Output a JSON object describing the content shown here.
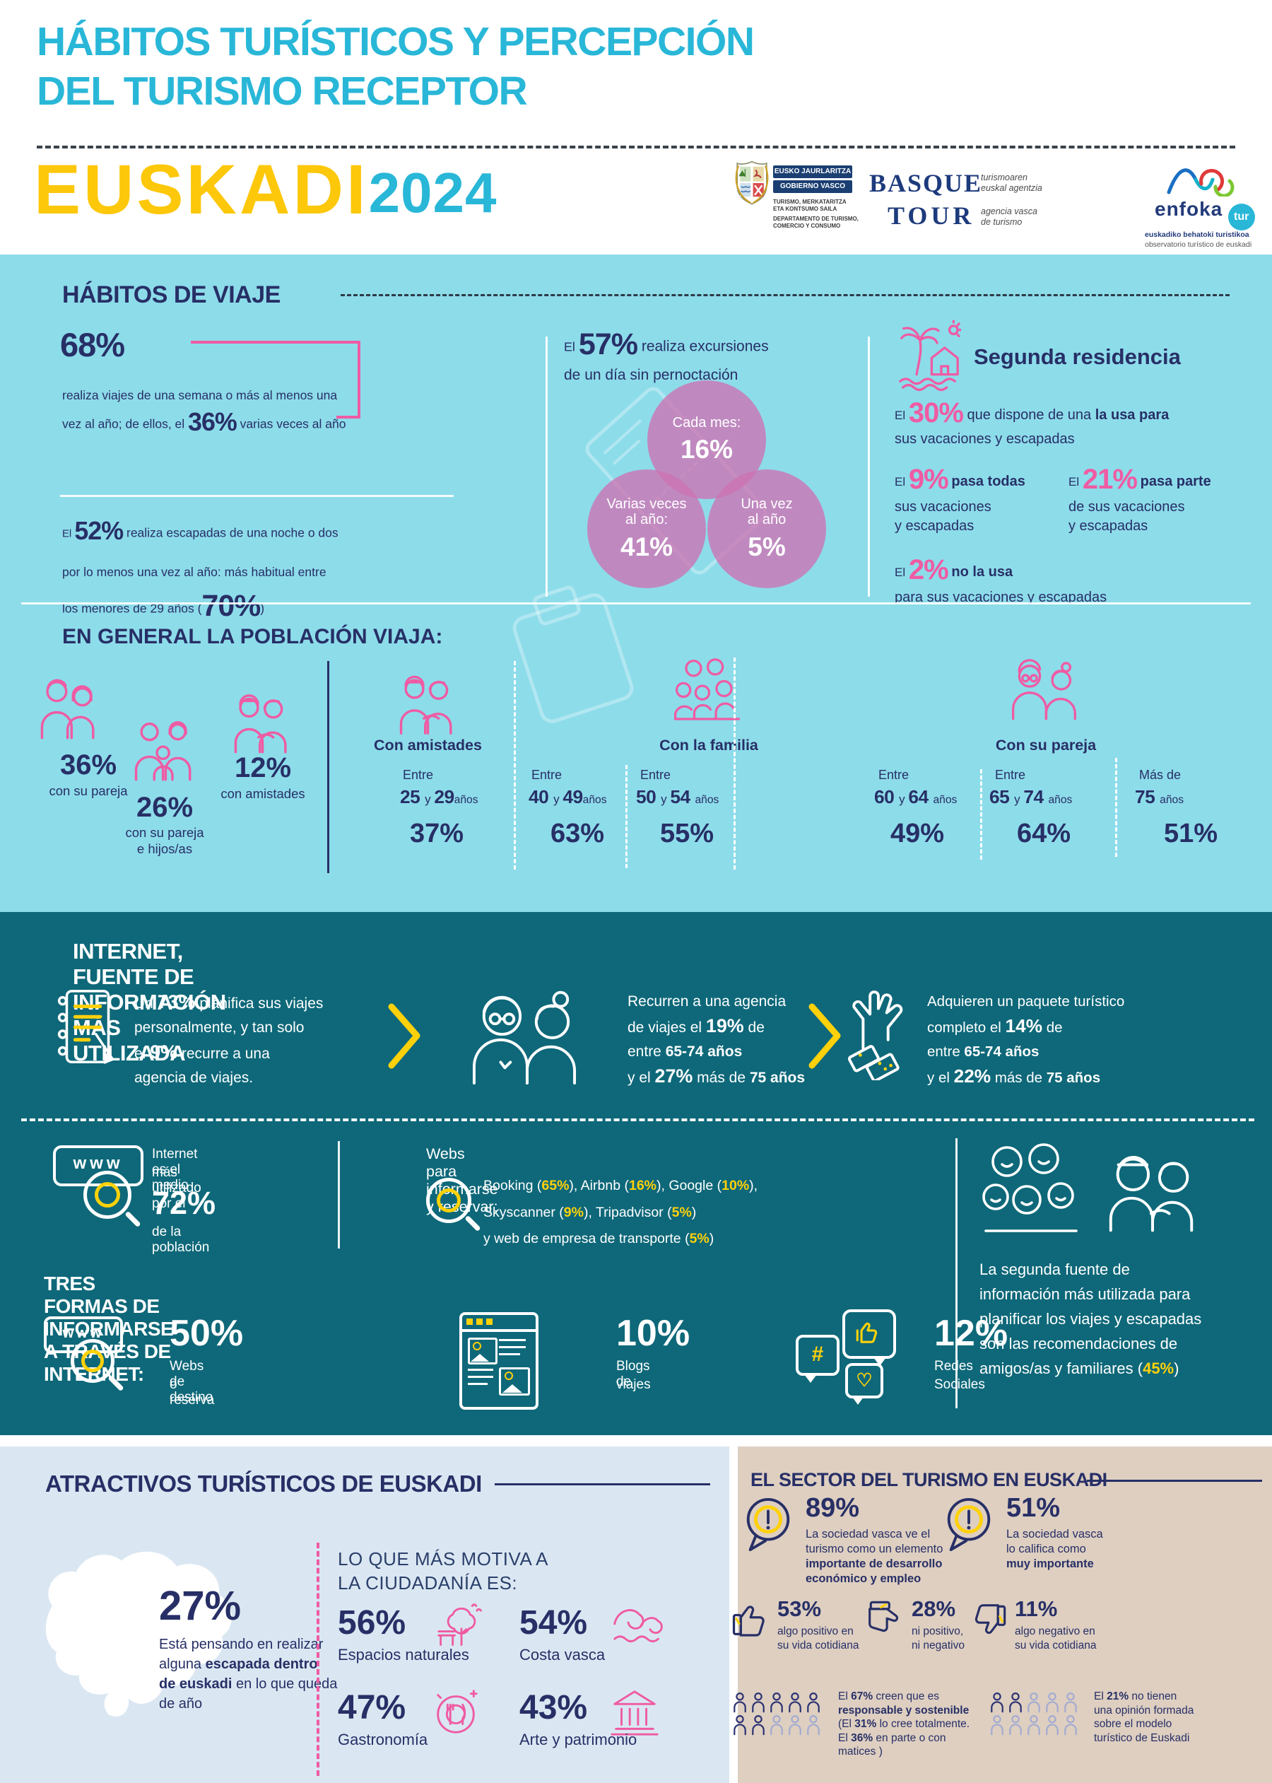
{
  "colors": {
    "cyan": "#29b7d8",
    "yellow": "#fdc70a",
    "navy": "#272f66",
    "pink": "#ef5ba3",
    "teal_bg": "#0e6879",
    "light_cyan_bg": "#8ddcea",
    "light_blue_bg": "#dae7f2",
    "tan_bg": "#decfc1"
  },
  "icons": {
    "www": "www",
    "www2": "www",
    "hash": "#",
    "heart": "♡"
  },
  "header": {
    "title1": "HÁBITOS TURÍSTICOS Y PERCEPCIÓN",
    "title2": "DEL TURISMO RECEPTOR",
    "brand": "EUSKADI",
    "year": "2024",
    "gov": {
      "bar1": "EUSKO JAURLARITZA",
      "bar2": "GOBIERNO VASCO",
      "sub1": "TURISMO, MERKATARITZA",
      "sub2": "ETA KONTSUMO SAILA",
      "sub3": "DEPARTAMENTO DE TURISMO,",
      "sub4": "COMERCIO Y CONSUMO"
    },
    "basque": {
      "l1": "BASQUE",
      "l2": "TOUR",
      "s1": "turismoaren",
      "s2": "euskal agentzia",
      "s3": "agencia vasca",
      "s4": "de turismo"
    },
    "enfoka": {
      "name": "enfoka",
      "tur": "tur",
      "s1": "euskadiko behatoki turistikoa",
      "s2": "observatorio turístico de euskadi"
    }
  },
  "habitos": {
    "title": "HÁBITOS DE VIAJE",
    "pct68": "68%",
    "s1l1": "realiza viajes de una semana o más al menos una",
    "s1l2": [
      {
        "t": "vez al año; de ellos, el "
      },
      {
        "t": "36%",
        "s": "hl"
      },
      {
        "t": " varias veces al año"
      }
    ],
    "s2l1": [
      {
        "t": "El ",
        "s": "sm"
      },
      {
        "t": "52%",
        "s": "hl"
      },
      {
        "t": " realiza escapadas de una noche o dos"
      }
    ],
    "s2l2": "por lo menos una vez al año: más habitual entre",
    "s2l3": [
      {
        "t": "los menores de 29 años ("
      },
      {
        "t": "70%",
        "s": "hl2"
      },
      {
        "t": ")"
      }
    ],
    "excl1": [
      {
        "t": "El ",
        "s": "sm"
      },
      {
        "t": "57%",
        "s": "hl"
      },
      {
        "t": " realiza excursiones"
      }
    ],
    "excl2": "de un día sin pernoctación",
    "circles": [
      {
        "l1": "Cada mes:",
        "l2": "",
        "pct": "16%"
      },
      {
        "l1": "Varias veces",
        "l2": "al año:",
        "pct": "41%"
      },
      {
        "l1": "Una vez",
        "l2": "al año",
        "pct": "5%"
      }
    ],
    "sr": {
      "title": "Segunda residencia",
      "a1": [
        {
          "t": "El ",
          "s": "sm"
        },
        {
          "t": "30%",
          "s": "pink"
        },
        {
          "t": " que dispone de una "
        },
        {
          "t": "la usa para",
          "s": "b"
        }
      ],
      "a2": "sus vacaciones y escapadas",
      "b1": [
        {
          "t": "El ",
          "s": "sm"
        },
        {
          "t": "9%",
          "s": "pink"
        },
        {
          "t": " ",
          "s": "sm"
        },
        {
          "t": "pasa todas",
          "s": "b"
        }
      ],
      "b2": "sus vacaciones",
      "b3": "y escapadas",
      "c1": [
        {
          "t": "El ",
          "s": "sm"
        },
        {
          "t": "21%",
          "s": "pink"
        },
        {
          "t": " ",
          "s": "sm"
        },
        {
          "t": "pasa parte",
          "s": "b"
        }
      ],
      "c2": "de sus vacaciones",
      "c3": "y escapadas",
      "d1": [
        {
          "t": "El ",
          "s": "sm"
        },
        {
          "t": "2%",
          "s": "pink"
        },
        {
          "t": " ",
          "s": "sm"
        },
        {
          "t": "no la usa",
          "s": "b"
        }
      ],
      "d2": "para sus vacaciones y escapadas"
    }
  },
  "poblacion": {
    "title": "EN GENERAL LA POBLACIÓN VIAJA:",
    "stats": [
      {
        "pct": "36%",
        "l1": "con su pareja",
        "l2": ""
      },
      {
        "pct": "26%",
        "l1": "con su pareja",
        "l2": "e hijos/as"
      },
      {
        "pct": "12%",
        "l1": "con amistades",
        "l2": ""
      }
    ],
    "g1": "Con amistades",
    "g2": "Con la familia",
    "g3": "Con su pareja",
    "cols": [
      {
        "pre": "Entre",
        "age": [
          {
            "t": "25 ",
            "s": "num"
          },
          {
            "t": "y ",
            "s": "y"
          },
          {
            "t": "29",
            "s": "num"
          },
          {
            "t": "años",
            "s": "anos"
          }
        ],
        "pct": "37%"
      },
      {
        "pre": "Entre",
        "age": [
          {
            "t": "40 ",
            "s": "num"
          },
          {
            "t": "y ",
            "s": "y"
          },
          {
            "t": "49",
            "s": "num"
          },
          {
            "t": "años",
            "s": "anos"
          }
        ],
        "pct": "63%"
      },
      {
        "pre": "Entre",
        "age": [
          {
            "t": "50 ",
            "s": "num"
          },
          {
            "t": "y ",
            "s": "y"
          },
          {
            "t": "54 ",
            "s": "num"
          },
          {
            "t": "años",
            "s": "anos"
          }
        ],
        "pct": "55%"
      },
      {
        "pre": "Entre",
        "age": [
          {
            "t": "60 ",
            "s": "num"
          },
          {
            "t": "y ",
            "s": "y"
          },
          {
            "t": "64 ",
            "s": "num"
          },
          {
            "t": "años",
            "s": "anos"
          }
        ],
        "pct": "49%"
      },
      {
        "pre": "Entre",
        "age": [
          {
            "t": "65 ",
            "s": "num"
          },
          {
            "t": "y ",
            "s": "y"
          },
          {
            "t": "74 ",
            "s": "num"
          },
          {
            "t": "años",
            "s": "anos"
          }
        ],
        "pct": "64%"
      },
      {
        "pre": "Más de",
        "age": [
          {
            "t": "75 ",
            "s": "num"
          },
          {
            "t": "años",
            "s": "anos"
          }
        ],
        "pct": "51%"
      }
    ]
  },
  "internet": {
    "title": "INTERNET, FUENTE DE INFORMACIÓN MÁS UTILIZADA",
    "t1": [
      [
        {
          "t": "Un "
        },
        {
          "t": "73%",
          "s": "bb"
        },
        {
          "t": " planifica sus viajes"
        }
      ],
      [
        {
          "t": "personalmente, y tan solo"
        }
      ],
      [
        {
          "t": "el "
        },
        {
          "t": "9%",
          "s": "bb"
        },
        {
          "t": " recurre a una"
        }
      ],
      [
        {
          "t": "agencia de viajes."
        }
      ]
    ],
    "t2": [
      [
        {
          "t": "Recurren a una agencia"
        }
      ],
      [
        {
          "t": "de viajes el "
        },
        {
          "t": "19%",
          "s": "bb"
        },
        {
          "t": " de"
        }
      ],
      [
        {
          "t": "entre "
        },
        {
          "t": "65-74 años",
          "s": "b"
        }
      ],
      [
        {
          "t": "y el "
        },
        {
          "t": "27%",
          "s": "bb"
        },
        {
          "t": " más de "
        },
        {
          "t": "75 años",
          "s": "b"
        }
      ]
    ],
    "t3": [
      [
        {
          "t": "Adquieren un paquete turístico"
        }
      ],
      [
        {
          "t": "completo el "
        },
        {
          "t": "14%",
          "s": "bb"
        },
        {
          "t": " de"
        }
      ],
      [
        {
          "t": "entre "
        },
        {
          "t": "65-74 años",
          "s": "b"
        }
      ],
      [
        {
          "t": "y el "
        },
        {
          "t": "22%",
          "s": "bb"
        },
        {
          "t": " más de "
        },
        {
          "t": "75 años",
          "s": "b"
        }
      ]
    ],
    "m1": "Internet es el medio",
    "m2": "más utilizado por el",
    "mpct": "72%",
    "m3": "de la población",
    "webs_title": "Webs para informarse y reservar:",
    "w1": [
      {
        "t": "Booking ("
      },
      {
        "t": "65%",
        "s": "yel"
      },
      {
        "t": "), Airbnb ("
      },
      {
        "t": "16%",
        "s": "yel"
      },
      {
        "t": "), Google ("
      },
      {
        "t": "10%",
        "s": "yel"
      },
      {
        "t": "),"
      }
    ],
    "w2": [
      {
        "t": "Skyscanner ("
      },
      {
        "t": "9%",
        "s": "yel"
      },
      {
        "t": "), Tripadvisor ("
      },
      {
        "t": "5%",
        "s": "yel"
      },
      {
        "t": ")"
      }
    ],
    "w3": [
      {
        "t": "y web de empresa de transporte ("
      },
      {
        "t": "5%",
        "s": "yel"
      },
      {
        "t": ")"
      }
    ],
    "seg": [
      [
        {
          "t": "La segunda fuente de"
        }
      ],
      [
        {
          "t": "información más utilizada para"
        }
      ],
      [
        {
          "t": "planificar los viajes y escapadas"
        }
      ],
      [
        {
          "t": "son las recomendaciones de"
        }
      ],
      [
        {
          "t": "amigos/as y familiares  ("
        },
        {
          "t": "45%",
          "s": "yel"
        },
        {
          "t": ")"
        }
      ]
    ],
    "tres_title": "TRES FORMAS DE INFORMARSE A TRAVÉS DE INTERNET:",
    "forms": [
      {
        "pct": "50%",
        "l1": "Webs de destino",
        "l2": "o reserva"
      },
      {
        "pct": "10%",
        "l1": "Blogs de",
        "l2": "viajes"
      },
      {
        "pct": "12%",
        "l1": "Redes",
        "l2": "Sociales"
      }
    ]
  },
  "atractivos": {
    "title": "ATRACTIVOS TURÍSTICOS DE EUSKADI",
    "pct": "27%",
    "body": [
      [
        {
          "t": "Está pensando en realizar"
        }
      ],
      [
        {
          "t": "alguna "
        },
        {
          "t": "escapada dentro",
          "s": "b"
        }
      ],
      [
        {
          "t": "de euskadi",
          "s": "b"
        },
        {
          "t": " en lo que queda"
        }
      ],
      [
        {
          "t": "de año"
        }
      ]
    ],
    "motiva1": "LO QUE MÁS MOTIVA A",
    "motiva2": "LA CIUDADANÍA ES:",
    "items": [
      {
        "pct": "56%",
        "label": "Espacios naturales"
      },
      {
        "pct": "54%",
        "label": "Costa vasca"
      },
      {
        "pct": "47%",
        "label": "Gastronomía"
      },
      {
        "pct": "43%",
        "label": "Arte y patrimonio"
      }
    ]
  },
  "sector": {
    "title": "EL SECTOR DEL TURISMO EN EUSKADI",
    "s1_pct": "89%",
    "s1": [
      [
        {
          "t": "La sociedad vasca ve el"
        }
      ],
      [
        {
          "t": "turismo como un elemento"
        }
      ],
      [
        {
          "t": "importante de desarrollo",
          "s": "b"
        }
      ],
      [
        {
          "t": "económico y empleo",
          "s": "b"
        }
      ]
    ],
    "s2_pct": "51%",
    "s2": [
      [
        {
          "t": "La sociedad vasca"
        }
      ],
      [
        {
          "t": "lo califica como"
        }
      ],
      [
        {
          "t": "muy importante",
          "s": "b"
        }
      ]
    ],
    "ops": [
      {
        "pct": "53%",
        "l1": "algo positivo en",
        "l2": "su vida cotidiana"
      },
      {
        "pct": "28%",
        "l1": "ni positivo,",
        "l2": "ni negativo"
      },
      {
        "pct": "11%",
        "l1": "algo negativo en",
        "l2": "su vida cotidiana"
      }
    ],
    "crowd1": [
      "n",
      "n",
      "n",
      "n",
      "n",
      "n",
      "n",
      "l",
      "l",
      "l"
    ],
    "crowd2": [
      "n",
      "n",
      "l",
      "l",
      "l",
      "l",
      "l",
      "l",
      "l",
      "l"
    ],
    "c1": [
      [
        {
          "t": "El "
        },
        {
          "t": "67%",
          "s": "b"
        },
        {
          "t": " creen que es"
        }
      ],
      [
        {
          "t": "responsable y sostenible",
          "s": "b"
        }
      ],
      [
        {
          "t": "(El "
        },
        {
          "t": "31%",
          "s": "b"
        },
        {
          "t": " lo cree totalmente."
        }
      ],
      [
        {
          "t": "El "
        },
        {
          "t": "36%",
          "s": "b"
        },
        {
          "t": " en parte o con"
        }
      ],
      [
        {
          "t": "matices )"
        }
      ]
    ],
    "c2": [
      [
        {
          "t": "El "
        },
        {
          "t": "21%",
          "s": "b"
        },
        {
          "t": " no tienen"
        }
      ],
      [
        {
          "t": "una opinión formada"
        }
      ],
      [
        {
          "t": "sobre el modelo"
        }
      ],
      [
        {
          "t": "turístico de Euskadi"
        }
      ]
    ]
  }
}
